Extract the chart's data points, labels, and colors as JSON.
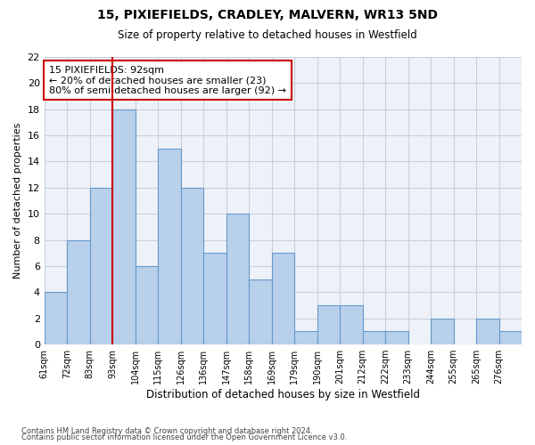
{
  "title1": "15, PIXIEFIELDS, CRADLEY, MALVERN, WR13 5ND",
  "title2": "Size of property relative to detached houses in Westfield",
  "xlabel": "Distribution of detached houses by size in Westfield",
  "ylabel": "Number of detached properties",
  "bin_labels": [
    "61sqm",
    "72sqm",
    "83sqm",
    "93sqm",
    "104sqm",
    "115sqm",
    "126sqm",
    "136sqm",
    "147sqm",
    "158sqm",
    "169sqm",
    "179sqm",
    "190sqm",
    "201sqm",
    "212sqm",
    "222sqm",
    "233sqm",
    "244sqm",
    "255sqm",
    "265sqm",
    "276sqm"
  ],
  "counts": [
    4,
    8,
    12,
    18,
    6,
    15,
    12,
    7,
    10,
    5,
    7,
    1,
    3,
    3,
    1,
    1,
    0,
    2,
    0,
    2,
    1
  ],
  "bar_color": "#b8d0ea",
  "bar_edge_color": "#6699cc",
  "vline_x_index": 3,
  "vline_color": "#cc0000",
  "annotation_text": "15 PIXIEFIELDS: 92sqm\n← 20% of detached houses are smaller (23)\n80% of semi-detached houses are larger (92) →",
  "annotation_box_color": "#ffffff",
  "annotation_box_edge": "#cc0000",
  "ylim": [
    0,
    22
  ],
  "yticks": [
    0,
    2,
    4,
    6,
    8,
    10,
    12,
    14,
    16,
    18,
    20,
    22
  ],
  "grid_color": "#c8d0dc",
  "bg_color": "#eef2f8",
  "footer1": "Contains HM Land Registry data © Crown copyright and database right 2024.",
  "footer2": "Contains public sector information licensed under the Open Government Licence v3.0."
}
